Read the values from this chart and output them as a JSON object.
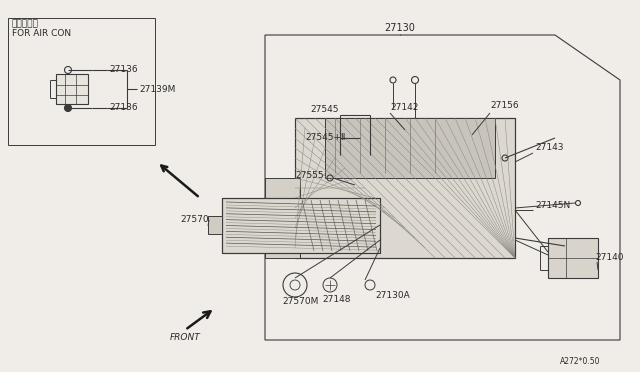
{
  "bg_color": "#f0ede8",
  "line_color": "#3a3a3a",
  "text_color": "#2a2a2a",
  "page_code": "A272*0.50",
  "labels": {
    "air_con_jp": "エアコン用",
    "air_con_en": "FOR AIR CON",
    "27136_top": "27136",
    "27136_bot": "27136",
    "27139M": "27139M",
    "27130": "27130",
    "27545": "27545",
    "27545b": "27545+Ⅱ",
    "27555": "27555",
    "27142": "27142",
    "27156": "27156",
    "27143": "27143",
    "27145N": "27145N",
    "27140": "27140",
    "27570": "27570",
    "27570M": "27570M",
    "27148": "27148",
    "27130A": "27130A",
    "FRONT": "FRONT"
  },
  "figsize": [
    6.4,
    3.72
  ],
  "dpi": 100
}
